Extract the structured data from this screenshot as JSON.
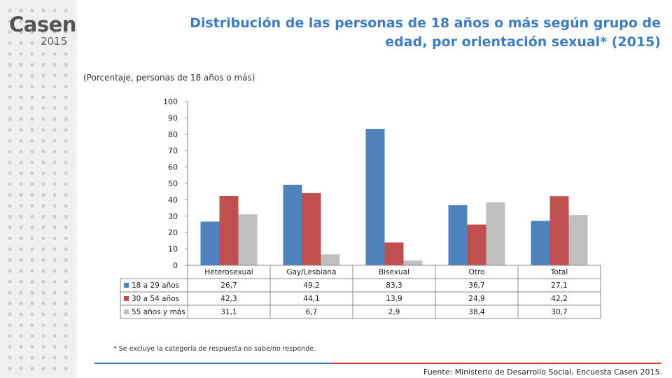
{
  "logo": {
    "name": "Casen",
    "year": "2015"
  },
  "title": "Distribución de las personas de 18 años o más según grupo de edad, por orientación sexual* (2015)",
  "subtitle": "(Porcentaje, personas de 18 años o más)",
  "footnote": "* Se excluye la categoría de respuesta no sabe/no responde.",
  "source": "Fuente: Ministerio de Desarrollo Social, Encuesta Casen 2015.",
  "chart_data": {
    "type": "bar",
    "categories": [
      "Heterosexual",
      "Gay/Lesbiana",
      "Bisexual",
      "Otro",
      "Total"
    ],
    "series": [
      {
        "name": "18 a 29 años",
        "color": "#4f81bd",
        "values": [
          26.7,
          49.2,
          83.3,
          36.7,
          27.1
        ],
        "labels": [
          "26,7",
          "49,2",
          "83,3",
          "36,7",
          "27,1"
        ]
      },
      {
        "name": "30 a 54 años",
        "color": "#c0504d",
        "values": [
          42.3,
          44.1,
          13.9,
          24.9,
          42.2
        ],
        "labels": [
          "42,3",
          "44,1",
          "13,9",
          "24,9",
          "42,2"
        ]
      },
      {
        "name": "55 años y más",
        "color": "#bfbfbf",
        "values": [
          31.1,
          6.7,
          2.9,
          38.4,
          30.7
        ],
        "labels": [
          "31,1",
          "6,7",
          "2,9",
          "38,4",
          "30,7"
        ]
      }
    ],
    "yticks": [
      "0",
      "10",
      "20",
      "30",
      "40",
      "50",
      "60",
      "70",
      "80",
      "90",
      "100"
    ],
    "ylim": [
      0,
      100
    ],
    "grid": false,
    "legend": "data-table"
  }
}
